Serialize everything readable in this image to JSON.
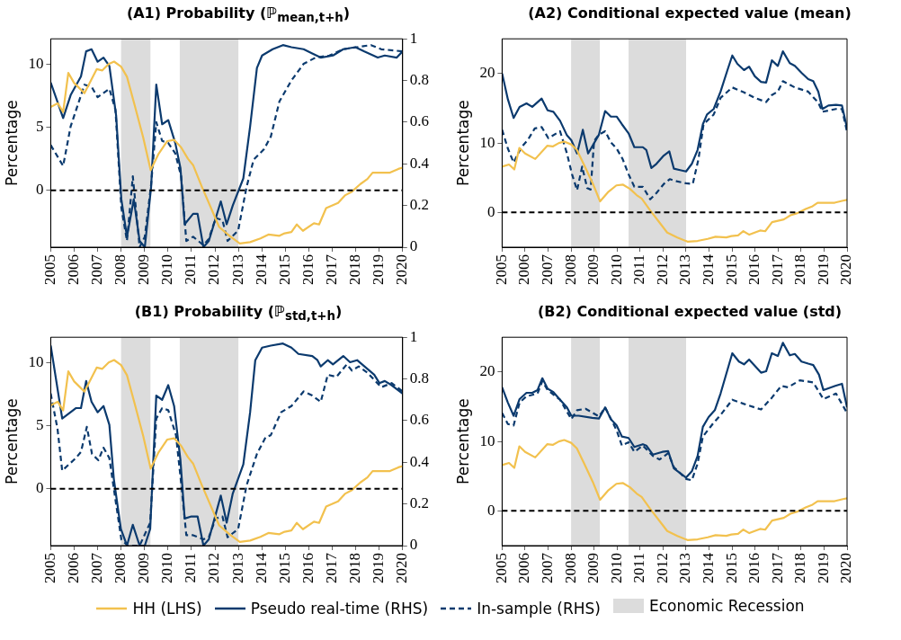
{
  "chart_data": [
    {
      "type": "line",
      "title": "(A1) Probability (ℙ$_{mean,t+h}$)",
      "ylabel": "Percentage",
      "xlim": [
        2005,
        2020
      ],
      "xticks": [
        2005,
        2006,
        2007,
        2008,
        2009,
        2010,
        2011,
        2012,
        2013,
        2014,
        2015,
        2016,
        2017,
        2018,
        2019,
        2020
      ],
      "ylim": [
        -4.5,
        12
      ],
      "yticks": [
        0,
        5,
        10
      ],
      "y2lim": [
        0,
        1
      ],
      "y2ticks": [
        0,
        0.2,
        0.4,
        0.6,
        0.8,
        1
      ],
      "legend": "bottom",
      "bands": [
        {
          "axis": "x",
          "from": 2008,
          "to": 2009.25,
          "label": "Economic Recession",
          "color": "#dcdcdc"
        },
        {
          "axis": "x",
          "from": 2010.5,
          "to": 2013,
          "color": "#dcdcdc"
        }
      ],
      "ref_lines": [
        {
          "axis": "y",
          "value": 0,
          "color": "#000000",
          "line_style": "dashed"
        }
      ],
      "series": [
        {
          "name": "HH (LHS)",
          "color": "#f2c14e",
          "x": [
            2005,
            2005.3,
            2005.53,
            2005.75,
            2006,
            2006.44,
            2006.96,
            2007.2,
            2007.47,
            2007.7,
            2008,
            2008.25,
            2008.57,
            2008.94,
            2009.26,
            2009.6,
            2009.97,
            2010.26,
            2010.56,
            2010.85,
            2011.07,
            2011.44,
            2011.88,
            2012.18,
            2012.62,
            2013.06,
            2013.5,
            2013.94,
            2014.28,
            2014.75,
            2014.97,
            2015.26,
            2015.49,
            2015.75,
            2016.22,
            2016.44,
            2016.74,
            2017.25,
            2017.54,
            2017.84,
            2018.2,
            2018.5,
            2018.72,
            2019.01,
            2019.46,
            2019.82,
            2020
          ],
          "values": [
            6.6,
            6.9,
            6.2,
            9.3,
            8.5,
            7.7,
            9.6,
            9.5,
            10,
            10.2,
            9.8,
            9,
            6.8,
            4.2,
            1.6,
            2.9,
            3.9,
            4,
            3.4,
            2.5,
            2,
            0.3,
            -1.6,
            -2.9,
            -3.6,
            -4.2,
            -4.1,
            -3.8,
            -3.5,
            -3.6,
            -3.4,
            -3.3,
            -2.7,
            -3.2,
            -2.6,
            -2.7,
            -1.4,
            -1,
            -0.4,
            -0.1,
            0.5,
            0.9,
            1.4,
            1.4,
            1.4,
            1.7,
            1.8
          ]
        },
        {
          "name": "Pseudo real-time (RHS)",
          "color": "#0b3a6e",
          "axis": "y2",
          "x": [
            2005,
            2005.53,
            2005.85,
            2006.29,
            2006.51,
            2006.74,
            2007,
            2007.25,
            2007.5,
            2007.79,
            2008.01,
            2008.25,
            2008.54,
            2008.79,
            2009.01,
            2009.28,
            2009.5,
            2009.75,
            2010.01,
            2010.31,
            2010.53,
            2010.71,
            2011.07,
            2011.26,
            2011.51,
            2011.74,
            2012.25,
            2012.5,
            2012.76,
            2013.21,
            2013.5,
            2013.79,
            2014.01,
            2014.46,
            2014.9,
            2015.26,
            2015.78,
            2016.15,
            2016.51,
            2017.03,
            2017.47,
            2017.99,
            2018.35,
            2018.94,
            2019.24,
            2019.75,
            2020
          ],
          "values": [
            0.79,
            0.62,
            0.73,
            0.82,
            0.94,
            0.95,
            0.89,
            0.91,
            0.87,
            0.63,
            0.23,
            0.05,
            0.23,
            0.03,
            0,
            0.29,
            0.78,
            0.59,
            0.61,
            0.5,
            0.38,
            0.11,
            0.16,
            0.16,
            0,
            0.03,
            0.22,
            0.11,
            0.2,
            0.33,
            0.58,
            0.86,
            0.92,
            0.95,
            0.97,
            0.96,
            0.95,
            0.93,
            0.91,
            0.92,
            0.95,
            0.96,
            0.94,
            0.91,
            0.92,
            0.91,
            0.94
          ]
        },
        {
          "name": "In-sample (RHS)",
          "color": "#0b3a6e",
          "axis": "y2",
          "line_style": "dashed",
          "x": [
            2005,
            2005.53,
            2005.85,
            2006.44,
            2006.74,
            2007,
            2007.5,
            2007.76,
            2008.01,
            2008.25,
            2008.5,
            2008.79,
            2009.01,
            2009.28,
            2009.5,
            2009.75,
            2010.01,
            2010.31,
            2010.56,
            2010.78,
            2011.07,
            2011.51,
            2011.74,
            2012.03,
            2012.32,
            2012.54,
            2012.99,
            2013.35,
            2013.65,
            2014.09,
            2014.38,
            2014.75,
            2015.26,
            2015.78,
            2016.29,
            2016.88,
            2017.47,
            2018.06,
            2018.65,
            2019.09,
            2020
          ],
          "values": [
            0.49,
            0.39,
            0.58,
            0.78,
            0.77,
            0.72,
            0.76,
            0.66,
            0.19,
            0.03,
            0.34,
            0,
            0.05,
            0.3,
            0.6,
            0.51,
            0.5,
            0.45,
            0.34,
            0.03,
            0.05,
            0.01,
            0.04,
            0.14,
            0.13,
            0.03,
            0.08,
            0.29,
            0.42,
            0.47,
            0.53,
            0.7,
            0.8,
            0.88,
            0.91,
            0.92,
            0.95,
            0.96,
            0.97,
            0.95,
            0.94
          ]
        }
      ]
    },
    {
      "type": "line",
      "title": "(A2) Conditional expected value (mean)",
      "ylabel": "Percentage",
      "xlim": [
        2005,
        2020
      ],
      "xticks": [
        2005,
        2006,
        2007,
        2008,
        2009,
        2010,
        2011,
        2012,
        2013,
        2014,
        2015,
        2016,
        2017,
        2018,
        2019,
        2020
      ],
      "ylim": [
        -5,
        25
      ],
      "yticks": [
        0,
        10,
        20
      ],
      "bands": [
        {
          "axis": "x",
          "from": 2008,
          "to": 2009.25,
          "color": "#dcdcdc"
        },
        {
          "axis": "x",
          "from": 2010.5,
          "to": 2013,
          "color": "#dcdcdc"
        }
      ],
      "ref_lines": [
        {
          "axis": "y",
          "value": 0,
          "color": "#000000",
          "line_style": "dashed"
        }
      ],
      "series": [
        {
          "color": "#f2c14e",
          "x": [
            2005,
            2005.3,
            2005.53,
            2005.75,
            2006,
            2006.44,
            2006.96,
            2007.2,
            2007.47,
            2007.7,
            2008,
            2008.25,
            2008.57,
            2008.94,
            2009.26,
            2009.6,
            2009.97,
            2010.26,
            2010.56,
            2010.85,
            2011.07,
            2011.44,
            2011.88,
            2012.18,
            2012.62,
            2013.06,
            2013.5,
            2013.94,
            2014.28,
            2014.75,
            2014.97,
            2015.26,
            2015.49,
            2015.75,
            2016.22,
            2016.44,
            2016.74,
            2017.25,
            2017.54,
            2017.84,
            2018.2,
            2018.5,
            2018.72,
            2019.01,
            2019.46,
            2019.82,
            2020
          ],
          "values": [
            6.6,
            6.9,
            6.2,
            9.3,
            8.5,
            7.7,
            9.6,
            9.5,
            10,
            10.2,
            9.8,
            9,
            6.8,
            4.2,
            1.6,
            2.9,
            3.9,
            4,
            3.4,
            2.5,
            2,
            0.3,
            -1.6,
            -2.9,
            -3.6,
            -4.2,
            -4.1,
            -3.8,
            -3.5,
            -3.6,
            -3.4,
            -3.3,
            -2.7,
            -3.2,
            -2.6,
            -2.7,
            -1.4,
            -1,
            -0.4,
            -0.1,
            0.5,
            0.9,
            1.4,
            1.4,
            1.4,
            1.7,
            1.8
          ]
        },
        {
          "color": "#0b3a6e",
          "x": [
            2005,
            2005.25,
            2005.5,
            2005.76,
            2006.06,
            2006.31,
            2006.72,
            2006.98,
            2007.23,
            2007.52,
            2007.82,
            2008.01,
            2008.26,
            2008.51,
            2008.74,
            2009.21,
            2009.48,
            2009.73,
            2009.98,
            2010.21,
            2010.5,
            2010.75,
            2011.12,
            2011.27,
            2011.49,
            2011.71,
            2012.03,
            2012.27,
            2012.47,
            2012.74,
            2013,
            2013.25,
            2013.5,
            2013.73,
            2013.91,
            2014.2,
            2014.5,
            2014.79,
            2015.01,
            2015.23,
            2015.52,
            2015.74,
            2015.99,
            2016.26,
            2016.48,
            2016.73,
            2016.99,
            2017.21,
            2017.51,
            2017.73,
            2018.02,
            2018.31,
            2018.53,
            2018.75,
            2018.93,
            2019.19,
            2019.52,
            2019.78,
            2020
          ],
          "values": [
            20,
            16.3,
            13.6,
            15.2,
            15.7,
            15.2,
            16.4,
            14.7,
            14.5,
            13.2,
            11.1,
            10.4,
            8.5,
            11.9,
            8.5,
            11.2,
            14.6,
            13.8,
            13.8,
            12.7,
            11.4,
            9.4,
            9.4,
            9,
            6.4,
            7,
            8.2,
            8.8,
            6.3,
            6.1,
            5.9,
            7,
            9,
            12.7,
            14.1,
            14.9,
            17.4,
            20.4,
            22.6,
            21.4,
            20.5,
            21,
            19.6,
            18.8,
            18.7,
            21.9,
            21.1,
            23.2,
            21.5,
            21.1,
            20.1,
            19.2,
            18.9,
            17.4,
            14.9,
            15.4,
            15.5,
            15.4,
            12.1
          ]
        },
        {
          "color": "#0b3a6e",
          "line_style": "dashed",
          "x": [
            2005,
            2005.25,
            2005.5,
            2005.84,
            2006.13,
            2006.42,
            2006.72,
            2007.01,
            2007.52,
            2007.82,
            2008.04,
            2008.26,
            2008.48,
            2008.7,
            2008.85,
            2009,
            2009.21,
            2009.48,
            2009.73,
            2009.98,
            2010.24,
            2010.5,
            2010.75,
            2011.12,
            2011.44,
            2011.71,
            2012.03,
            2012.29,
            2012.59,
            2013,
            2013.29,
            2013.54,
            2013.76,
            2014.2,
            2014.5,
            2015.01,
            2015.52,
            2015.99,
            2016.48,
            2016.73,
            2016.99,
            2017.21,
            2017.73,
            2018.31,
            2018.75,
            2018.93,
            2019.52,
            2019.78,
            2020
          ],
          "values": [
            11.9,
            9.2,
            7.2,
            9.4,
            10.5,
            12.1,
            12.3,
            10.7,
            11.7,
            8.5,
            5.5,
            3.2,
            6.6,
            3.5,
            3.3,
            10.3,
            11.2,
            11.7,
            10.1,
            9.2,
            7.7,
            5.5,
            3.7,
            3.7,
            1.9,
            2.8,
            4.1,
            4.8,
            4.5,
            4.2,
            4.1,
            7.7,
            12.7,
            14.1,
            16.5,
            18,
            17.3,
            16.5,
            15.9,
            16.9,
            17.4,
            18.9,
            18,
            17.4,
            15.8,
            14.5,
            14.9,
            14.9,
            11.6
          ]
        }
      ]
    },
    {
      "type": "line",
      "title": "(B1) Probability (ℙ$_{std,t+h}$)",
      "ylabel": "Percentage",
      "xlim": [
        2005,
        2020
      ],
      "xticks": [
        2005,
        2006,
        2007,
        2008,
        2009,
        2010,
        2011,
        2012,
        2013,
        2014,
        2015,
        2016,
        2017,
        2018,
        2019,
        2020
      ],
      "ylim": [
        -4.5,
        12
      ],
      "yticks": [
        0,
        5,
        10
      ],
      "y2lim": [
        0,
        1
      ],
      "y2ticks": [
        0,
        0.2,
        0.4,
        0.6,
        0.8,
        1
      ],
      "bands": [
        {
          "axis": "x",
          "from": 2008,
          "to": 2009.25,
          "color": "#dcdcdc"
        },
        {
          "axis": "x",
          "from": 2010.5,
          "to": 2013,
          "color": "#dcdcdc"
        }
      ],
      "ref_lines": [
        {
          "axis": "y",
          "value": 0,
          "color": "#000000",
          "line_style": "dashed"
        }
      ],
      "series": [
        {
          "color": "#f2c14e",
          "x": [
            2005,
            2005.3,
            2005.53,
            2005.75,
            2006,
            2006.44,
            2006.96,
            2007.2,
            2007.47,
            2007.7,
            2008,
            2008.25,
            2008.57,
            2008.94,
            2009.26,
            2009.6,
            2009.97,
            2010.26,
            2010.56,
            2010.85,
            2011.07,
            2011.44,
            2011.88,
            2012.18,
            2012.62,
            2013.06,
            2013.5,
            2013.94,
            2014.28,
            2014.75,
            2014.97,
            2015.26,
            2015.49,
            2015.75,
            2016.22,
            2016.44,
            2016.74,
            2017.25,
            2017.54,
            2017.84,
            2018.2,
            2018.5,
            2018.72,
            2019.01,
            2019.46,
            2019.82,
            2020
          ],
          "values": [
            6.6,
            6.9,
            6.2,
            9.3,
            8.5,
            7.7,
            9.6,
            9.5,
            10,
            10.2,
            9.8,
            9,
            6.8,
            4.2,
            1.6,
            2.9,
            3.9,
            4,
            3.4,
            2.5,
            2,
            0.3,
            -1.6,
            -2.9,
            -3.6,
            -4.2,
            -4.1,
            -3.8,
            -3.5,
            -3.6,
            -3.4,
            -3.3,
            -2.7,
            -3.2,
            -2.6,
            -2.7,
            -1.4,
            -1,
            -0.4,
            -0.1,
            0.5,
            0.9,
            1.4,
            1.4,
            1.4,
            1.7,
            1.8
          ]
        },
        {
          "color": "#0b3a6e",
          "axis": "y2",
          "x": [
            2005,
            2005.49,
            2006.07,
            2006.29,
            2006.51,
            2006.74,
            2007,
            2007.25,
            2007.5,
            2007.69,
            2007.99,
            2008.25,
            2008.5,
            2008.79,
            2009.01,
            2009.24,
            2009.5,
            2009.75,
            2010.01,
            2010.26,
            2010.53,
            2010.71,
            2011,
            2011.26,
            2011.51,
            2011.74,
            2012.25,
            2012.5,
            2012.76,
            2013.21,
            2013.5,
            2013.72,
            2014.01,
            2014.38,
            2014.9,
            2015.26,
            2015.56,
            2016.15,
            2016.37,
            2016.51,
            2016.81,
            2017.03,
            2017.47,
            2017.76,
            2018.06,
            2018.79,
            2019.01,
            2019.24,
            2019.53,
            2020
          ],
          "values": [
            0.96,
            0.61,
            0.66,
            0.66,
            0.79,
            0.69,
            0.64,
            0.67,
            0.58,
            0.32,
            0.08,
            0,
            0.1,
            0,
            0,
            0.08,
            0.72,
            0.7,
            0.77,
            0.67,
            0.41,
            0.13,
            0.14,
            0.14,
            0,
            0.03,
            0.24,
            0.11,
            0.25,
            0.39,
            0.64,
            0.89,
            0.95,
            0.96,
            0.97,
            0.95,
            0.92,
            0.91,
            0.89,
            0.86,
            0.89,
            0.87,
            0.91,
            0.88,
            0.89,
            0.82,
            0.78,
            0.79,
            0.77,
            0.73
          ]
        },
        {
          "color": "#0b3a6e",
          "axis": "y2",
          "line_style": "dashed",
          "x": [
            2005,
            2005.29,
            2005.49,
            2005.78,
            2006.07,
            2006.29,
            2006.54,
            2006.76,
            2007.03,
            2007.25,
            2007.5,
            2007.76,
            2008.01,
            2008.28,
            2008.79,
            2009.24,
            2009.5,
            2009.75,
            2010.01,
            2010.34,
            2010.56,
            2010.78,
            2011.07,
            2011.51,
            2011.74,
            2012.03,
            2012.32,
            2012.54,
            2012.99,
            2013.35,
            2013.79,
            2014.16,
            2014.38,
            2014.82,
            2015.26,
            2015.78,
            2016.15,
            2016.51,
            2016.81,
            2017.18,
            2017.62,
            2017.84,
            2018.13,
            2018.5,
            2019.09,
            2019.53,
            2020
          ],
          "values": [
            0.73,
            0.56,
            0.36,
            0.39,
            0.42,
            0.45,
            0.57,
            0.44,
            0.41,
            0.47,
            0.42,
            0.22,
            0.03,
            0,
            0,
            0.11,
            0.61,
            0.66,
            0.65,
            0.53,
            0.3,
            0.05,
            0.05,
            0.03,
            0.04,
            0.13,
            0.14,
            0.04,
            0.08,
            0.29,
            0.44,
            0.52,
            0.53,
            0.64,
            0.67,
            0.74,
            0.72,
            0.69,
            0.82,
            0.81,
            0.87,
            0.84,
            0.86,
            0.83,
            0.76,
            0.78,
            0.74
          ]
        }
      ]
    },
    {
      "type": "line",
      "title": "(B2) Conditional expected value (std)",
      "ylabel": "Percentage",
      "xlim": [
        2005,
        2020
      ],
      "xticks": [
        2005,
        2006,
        2007,
        2008,
        2009,
        2010,
        2011,
        2012,
        2013,
        2014,
        2015,
        2016,
        2017,
        2018,
        2019,
        2020
      ],
      "ylim": [
        -5,
        25
      ],
      "yticks": [
        0,
        10,
        20
      ],
      "bands": [
        {
          "axis": "x",
          "from": 2008,
          "to": 2009.25,
          "color": "#dcdcdc"
        },
        {
          "axis": "x",
          "from": 2010.5,
          "to": 2013,
          "color": "#dcdcdc"
        }
      ],
      "ref_lines": [
        {
          "axis": "y",
          "value": 0,
          "color": "#000000",
          "line_style": "dashed"
        }
      ],
      "series": [
        {
          "color": "#f2c14e",
          "x": [
            2005,
            2005.3,
            2005.53,
            2005.75,
            2006,
            2006.44,
            2006.96,
            2007.2,
            2007.47,
            2007.7,
            2008,
            2008.25,
            2008.57,
            2008.94,
            2009.26,
            2009.6,
            2009.97,
            2010.26,
            2010.56,
            2010.85,
            2011.07,
            2011.44,
            2011.88,
            2012.18,
            2012.62,
            2013.06,
            2013.5,
            2013.94,
            2014.28,
            2014.75,
            2014.97,
            2015.26,
            2015.49,
            2015.75,
            2016.22,
            2016.44,
            2016.74,
            2017.25,
            2017.54,
            2017.84,
            2018.2,
            2018.5,
            2018.72,
            2019.01,
            2019.46,
            2019.82,
            2020
          ],
          "values": [
            6.6,
            6.9,
            6.2,
            9.3,
            8.5,
            7.7,
            9.6,
            9.5,
            10,
            10.2,
            9.8,
            9,
            6.8,
            4.2,
            1.6,
            2.9,
            3.9,
            4,
            3.4,
            2.5,
            2,
            0.3,
            -1.6,
            -2.9,
            -3.6,
            -4.2,
            -4.1,
            -3.8,
            -3.5,
            -3.6,
            -3.4,
            -3.3,
            -2.7,
            -3.2,
            -2.6,
            -2.7,
            -1.4,
            -1,
            -0.4,
            -0.1,
            0.5,
            0.9,
            1.4,
            1.4,
            1.4,
            1.7,
            1.8
          ]
        },
        {
          "color": "#0b3a6e",
          "x": [
            2005,
            2005.25,
            2005.5,
            2005.76,
            2006.06,
            2006.31,
            2006.54,
            2006.75,
            2006.98,
            2007.23,
            2007.52,
            2007.82,
            2008.01,
            2008.33,
            2008.92,
            2009.21,
            2009.48,
            2009.73,
            2009.98,
            2010.21,
            2010.5,
            2010.75,
            2011.12,
            2011.27,
            2011.56,
            2011.97,
            2012.22,
            2012.47,
            2013,
            2013.25,
            2013.5,
            2013.73,
            2013.98,
            2014.25,
            2014.5,
            2015.01,
            2015.3,
            2015.52,
            2015.74,
            2016.26,
            2016.48,
            2016.73,
            2016.99,
            2017.21,
            2017.51,
            2017.73,
            2018.02,
            2018.31,
            2018.53,
            2018.78,
            2018.97,
            2019.49,
            2019.78,
            2020
          ],
          "values": [
            17.8,
            15.6,
            13.7,
            16.1,
            17,
            17,
            17.4,
            19.1,
            17.6,
            17.1,
            16,
            14.9,
            13.7,
            13.7,
            13.4,
            13.3,
            14.9,
            13.2,
            12.3,
            10.7,
            10.5,
            9.2,
            9.6,
            9.4,
            8.1,
            8.5,
            8.6,
            6.1,
            4.8,
            5.7,
            7.9,
            12.1,
            13.5,
            14.5,
            16.9,
            22.7,
            21.5,
            21.1,
            21.8,
            19.9,
            20.1,
            22.7,
            22.3,
            24.2,
            22.4,
            22.6,
            21.5,
            21.2,
            21,
            19.6,
            17.4,
            18,
            18.3,
            14.9
          ]
        },
        {
          "color": "#0b3a6e",
          "line_style": "dashed",
          "x": [
            2005,
            2005.25,
            2005.5,
            2005.76,
            2006.06,
            2006.54,
            2006.75,
            2006.98,
            2007.52,
            2008.01,
            2008.26,
            2008.63,
            2009.21,
            2009.48,
            2009.98,
            2010.21,
            2010.5,
            2010.75,
            2011.12,
            2011.56,
            2011.85,
            2012.22,
            2012.47,
            2013,
            2013.25,
            2013.5,
            2013.73,
            2014.2,
            2014.5,
            2015.01,
            2015.52,
            2016.26,
            2016.73,
            2017.14,
            2017.43,
            2017.95,
            2018.53,
            2018.97,
            2019.52,
            2020
          ],
          "values": [
            14.1,
            12.5,
            12.3,
            15.6,
            16.5,
            16.9,
            18.7,
            17.4,
            16,
            13.2,
            14.5,
            14.7,
            13.6,
            14.9,
            11.6,
            9.4,
            9.9,
            8.5,
            9.4,
            7.9,
            7.4,
            8.3,
            6.3,
            4.6,
            4.4,
            6.8,
            10.7,
            12.7,
            13.8,
            16,
            15.4,
            14.6,
            16.3,
            18,
            17.8,
            18.8,
            18.5,
            16.1,
            16.9,
            14.1
          ]
        }
      ]
    }
  ]
}
